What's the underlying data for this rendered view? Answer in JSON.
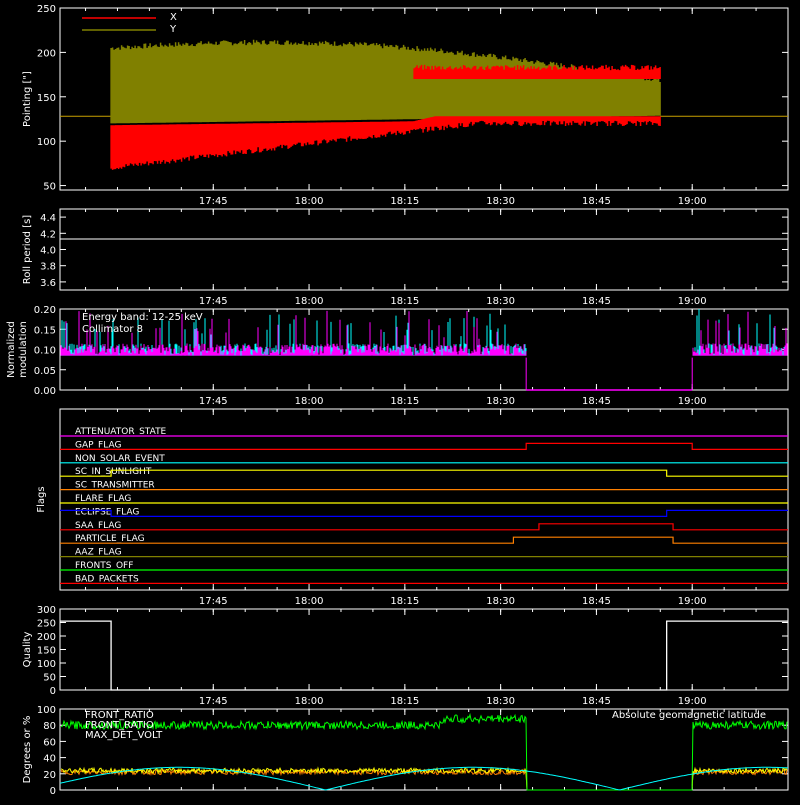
{
  "time_ticks": [
    "17:45",
    "18:00",
    "18:15",
    "18:30",
    "18:45",
    "19:00"
  ],
  "chart_data": [
    {
      "id": "pointing",
      "type": "line",
      "ylabel": "Pointing [\"]",
      "xlim_minutes": [
        1727,
        1753
      ],
      "ylim": [
        45,
        250
      ],
      "yticks": [
        50,
        100,
        150,
        200,
        250
      ],
      "series": [
        {
          "name": "X",
          "color": "#ff0000",
          "envelope": [
            [
              1727,
              128
            ],
            [
              1741,
              128
            ],
            [
              1741,
              68
            ],
            [
              1744,
              112
            ],
            [
              1750,
              125
            ],
            [
              1752,
              124
            ],
            [
              1753,
              128
            ]
          ],
          "min": [
            [
              1741,
              70
            ],
            [
              1742,
              85
            ],
            [
              1744,
              105
            ],
            [
              1747,
              118
            ],
            [
              1750,
              115
            ],
            [
              1752,
              117
            ]
          ],
          "max": [
            [
              1741,
              120
            ],
            [
              1742,
              118
            ],
            [
              1744,
              118
            ],
            [
              1747,
              130
            ],
            [
              1750,
              187
            ],
            [
              1752,
              187
            ]
          ]
        },
        {
          "name": "Y",
          "color": "#808000",
          "min": [
            [
              1741,
              60
            ],
            [
              1742,
              100
            ],
            [
              1744,
              116
            ],
            [
              1747,
              120
            ],
            [
              1750,
              112
            ],
            [
              1752,
              115
            ]
          ],
          "max": [
            [
              1741,
              205
            ],
            [
              1742,
              208
            ],
            [
              1744,
              212
            ],
            [
              1747,
              192
            ],
            [
              1750,
              180
            ],
            [
              1752,
              180
            ]
          ]
        }
      ],
      "baseline": 128,
      "active_range_minutes": [
        1049,
        1135
      ]
    },
    {
      "id": "roll_period",
      "type": "line",
      "ylabel": "Roll period [s]",
      "ylim": [
        3.5,
        4.5
      ],
      "yticks": [
        3.6,
        3.8,
        4.0,
        4.2,
        4.4
      ],
      "value": 4.13
    },
    {
      "id": "modulation",
      "type": "line",
      "ylabel": "Normalized modulation",
      "ylim": [
        0.0,
        0.2
      ],
      "yticks": [
        0.0,
        0.05,
        0.1,
        0.15,
        0.2
      ],
      "legend": [
        "Energy band: 12-25 keV",
        "Collimator 8"
      ],
      "series_colors": [
        "#00ffff",
        "#ff00ff"
      ],
      "gap_minutes": [
        1114,
        1140
      ]
    },
    {
      "id": "flags",
      "type": "line",
      "ylabel": "Flags",
      "flags": [
        {
          "label": "ATTENUATOR_STATE",
          "color": "#ff00ff",
          "steps": []
        },
        {
          "label": "GAP_FLAG",
          "color": "#ff0000",
          "steps": [
            [
              1114,
              1
            ],
            [
              1140,
              0
            ]
          ]
        },
        {
          "label": "NON_SOLAR_EVENT",
          "color": "#00ffff",
          "steps": []
        },
        {
          "label": "SC_IN_SUNLIGHT",
          "color": "#ffff00",
          "steps": [
            [
              1049,
              1
            ],
            [
              1136,
              0
            ]
          ]
        },
        {
          "label": "SC_TRANSMITTER",
          "color": "#ff8000",
          "steps": []
        },
        {
          "label": "FLARE_FLAG",
          "color": "#ffff00",
          "steps": []
        },
        {
          "label": "ECLIPSE_FLAG",
          "color": "#0000ff",
          "steps": [
            [
              1049,
              0
            ],
            [
              1136,
              1
            ]
          ]
        },
        {
          "label": "SAA_FLAG",
          "color": "#ff0000",
          "steps": [
            [
              1116,
              1
            ],
            [
              1137,
              0
            ]
          ]
        },
        {
          "label": "PARTICLE_FLAG",
          "color": "#ff8000",
          "steps": [
            [
              1112,
              1
            ],
            [
              1137,
              0
            ]
          ]
        },
        {
          "label": "AAZ_FLAG",
          "color": "#808000",
          "steps": []
        },
        {
          "label": "FRONTS_OFF",
          "color": "#00ff00",
          "steps": []
        },
        {
          "label": "BAD_PACKETS",
          "color": "#ff0000",
          "steps": []
        }
      ]
    },
    {
      "id": "quality",
      "type": "line",
      "ylabel": "Quality",
      "ylim": [
        0,
        300
      ],
      "yticks": [
        0,
        50,
        100,
        150,
        200,
        250,
        300
      ],
      "segments": [
        [
          1041,
          1049,
          255
        ],
        [
          1049,
          1136,
          0
        ],
        [
          1136,
          1155,
          255
        ]
      ]
    },
    {
      "id": "ratios",
      "type": "line",
      "ylabel": "Degrees or %",
      "ylim": [
        0,
        100
      ],
      "yticks": [
        0,
        20,
        40,
        60,
        80,
        100
      ],
      "legend": [
        {
          "label": "FRONT_RATIO",
          "color": "#ffff00"
        },
        {
          "label": "FRONT_RATIO",
          "color": "#00ff00"
        },
        {
          "label": "MAX_DET_VOLT",
          "color": "#ff8000"
        },
        {
          "label": "Absolute geomagnetic latitude",
          "color": "#00ffff"
        }
      ]
    }
  ]
}
